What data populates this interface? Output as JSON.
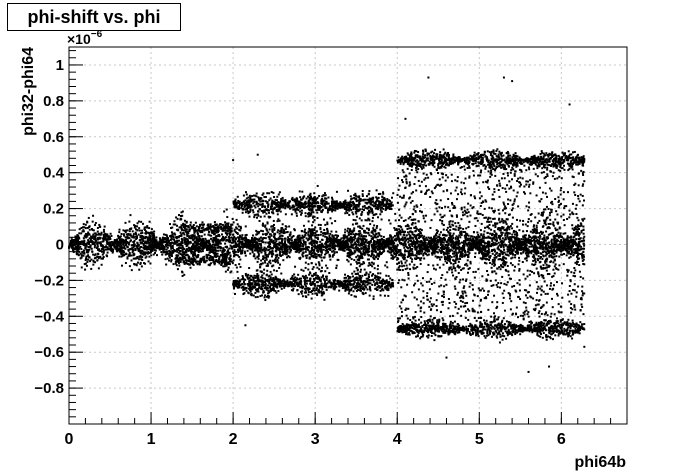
{
  "chart_data": {
    "type": "scatter",
    "title": "phi-shift vs. phi",
    "xlabel": "phi64b",
    "ylabel": "phi32-phi64",
    "y_multiplier": "×10",
    "y_exponent": "−6",
    "xlim": [
      0,
      6.8
    ],
    "ylim": [
      -1.0,
      1.1
    ],
    "x_ticks": [
      0,
      1,
      2,
      3,
      4,
      5,
      6
    ],
    "x_tick_labels": [
      "0",
      "1",
      "2",
      "3",
      "4",
      "5",
      "6"
    ],
    "y_ticks": [
      -0.8,
      -0.6,
      -0.4,
      -0.2,
      0,
      0.2,
      0.4,
      0.6,
      0.8,
      1
    ],
    "y_tick_labels": [
      "−0.8",
      "−0.6",
      "−0.4",
      "−0.2",
      "0",
      "0.2",
      "0.4",
      "0.6",
      "0.8",
      "1"
    ],
    "grid": true,
    "marker_color": "#000000",
    "notes": "Dense scatter of ~thousands of points; points populate a central band around y=0 over x in [0,6.28], with side bands near ±0.2e-6 for x in [2,4] and ±0.47e-6 for x in [4,6.28], plus sparse outliers.",
    "highlighted_points": [
      {
        "x": 4.38,
        "y": 0.93
      },
      {
        "x": 5.3,
        "y": 0.93
      },
      {
        "x": 5.4,
        "y": 0.91
      },
      {
        "x": 6.1,
        "y": 0.78
      },
      {
        "x": 4.1,
        "y": 0.7
      },
      {
        "x": 5.6,
        "y": -0.71
      },
      {
        "x": 5.85,
        "y": -0.68
      },
      {
        "x": 6.28,
        "y": -0.57
      },
      {
        "x": 4.6,
        "y": -0.63
      },
      {
        "x": 2.3,
        "y": 0.5
      },
      {
        "x": 2.0,
        "y": 0.47
      },
      {
        "x": 2.15,
        "y": -0.45
      }
    ],
    "regions": [
      {
        "name": "central-band",
        "x": [
          0.0,
          6.28
        ],
        "y_center": 0.0,
        "y_spread": [
          0.03,
          0.12
        ]
      },
      {
        "name": "upper-mid-band",
        "x": [
          2.0,
          3.95
        ],
        "y_center": 0.22,
        "y_spread": 0.05
      },
      {
        "name": "lower-mid-band",
        "x": [
          2.0,
          3.95
        ],
        "y_center": -0.22,
        "y_spread": 0.05
      },
      {
        "name": "upper-outer-band",
        "x": [
          4.0,
          6.28
        ],
        "y_center": 0.47,
        "y_spread": 0.025
      },
      {
        "name": "lower-outer-band",
        "x": [
          4.0,
          6.28
        ],
        "y_center": -0.47,
        "y_spread": 0.025
      },
      {
        "name": "sparse-fill",
        "x": [
          4.0,
          6.28
        ],
        "y_range": [
          -0.45,
          0.45
        ]
      }
    ]
  }
}
